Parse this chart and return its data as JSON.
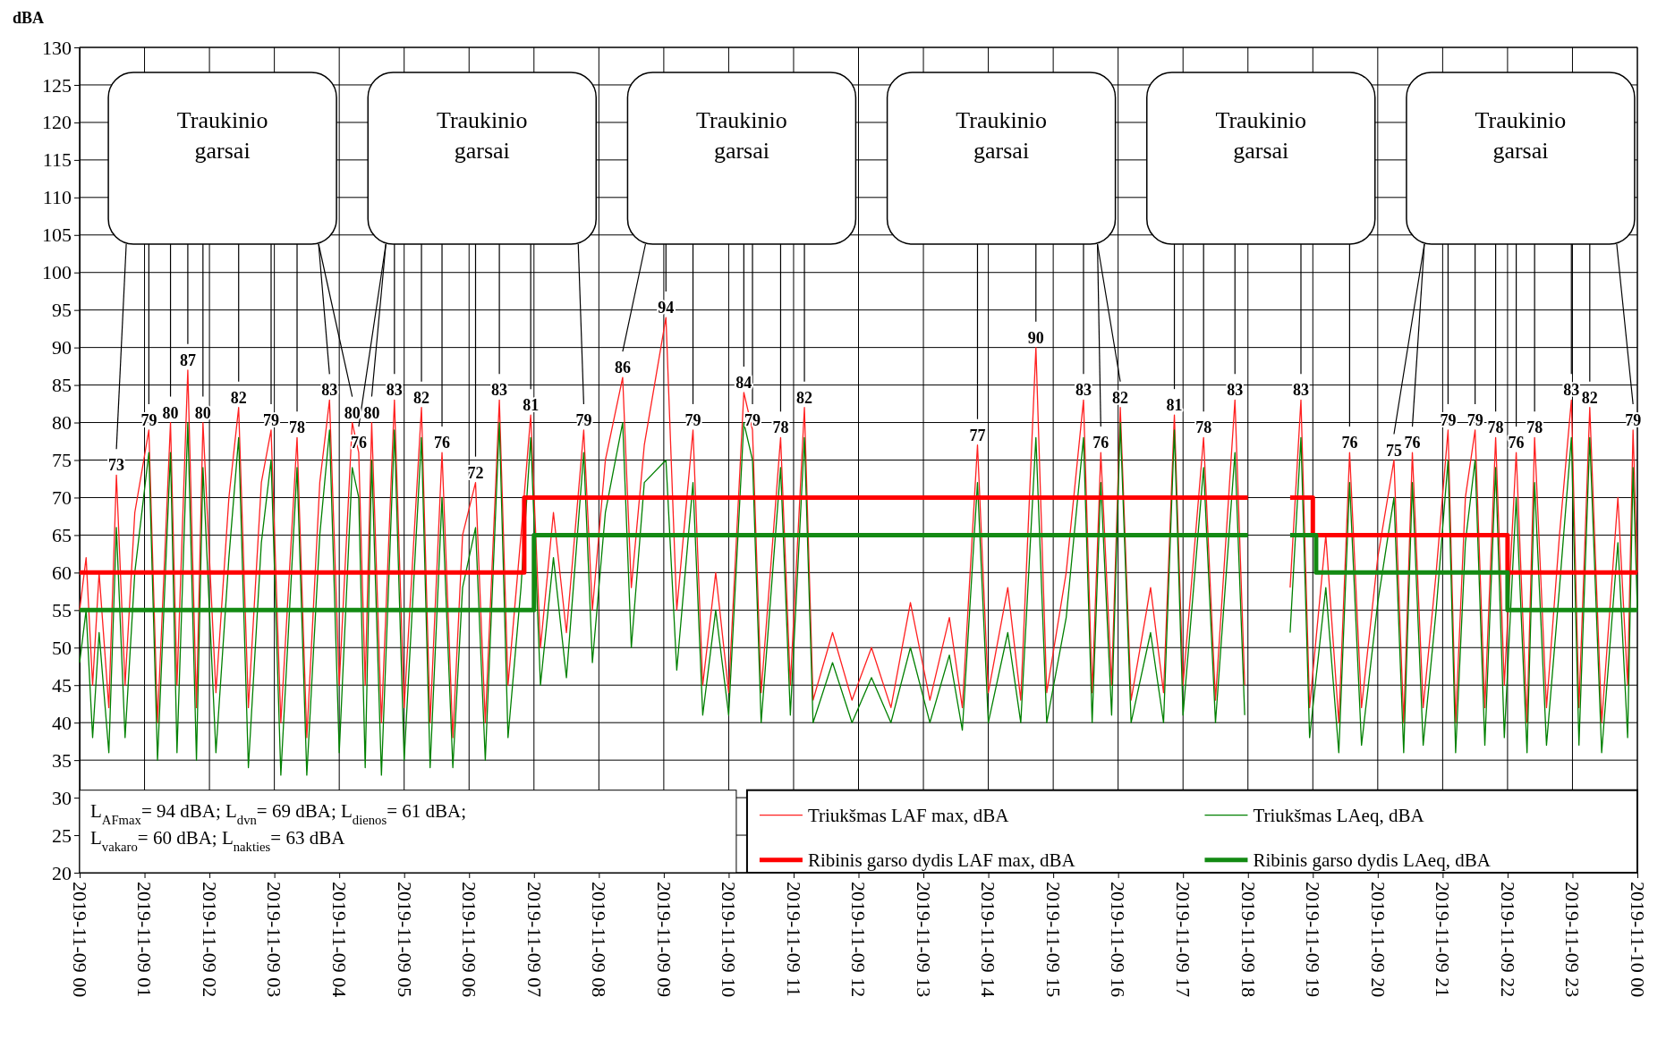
{
  "chart_data": {
    "type": "line",
    "ylabel": "dBA",
    "xlim": [
      "2019-11-09T00:00",
      "2019-11-10T00:00"
    ],
    "xticks": [
      {
        "value": "2019-11-09T00:00",
        "label": "2019-11-09 00"
      },
      {
        "value": "2019-11-09T01:00",
        "label": "2019-11-09 01"
      },
      {
        "value": "2019-11-09T02:00",
        "label": "2019-11-09 02"
      },
      {
        "value": "2019-11-09T03:00",
        "label": "2019-11-09 03"
      },
      {
        "value": "2019-11-09T04:00",
        "label": "2019-11-09 04"
      },
      {
        "value": "2019-11-09T05:00",
        "label": "2019-11-09 05"
      },
      {
        "value": "2019-11-09T06:00",
        "label": "2019-11-09 06"
      },
      {
        "value": "2019-11-09T07:00",
        "label": "2019-11-09 07"
      },
      {
        "value": "2019-11-09T08:00",
        "label": "2019-11-09 08"
      },
      {
        "value": "2019-11-09T09:00",
        "label": "2019-11-09 09"
      },
      {
        "value": "2019-11-09T10:00",
        "label": "2019-11-09 10"
      },
      {
        "value": "2019-11-09T11:00",
        "label": "2019-11-09 11"
      },
      {
        "value": "2019-11-09T12:00",
        "label": "2019-11-09 12"
      },
      {
        "value": "2019-11-09T13:00",
        "label": "2019-11-09 13"
      },
      {
        "value": "2019-11-09T14:00",
        "label": "2019-11-09 14"
      },
      {
        "value": "2019-11-09T15:00",
        "label": "2019-11-09 15"
      },
      {
        "value": "2019-11-09T16:00",
        "label": "2019-11-09 16"
      },
      {
        "value": "2019-11-09T17:00",
        "label": "2019-11-09 17"
      },
      {
        "value": "2019-11-09T18:00",
        "label": "2019-11-09 18"
      },
      {
        "value": "2019-11-09T19:00",
        "label": "2019-11-09 19"
      },
      {
        "value": "2019-11-09T20:00",
        "label": "2019-11-09 20"
      },
      {
        "value": "2019-11-09T21:00",
        "label": "2019-11-09 21"
      },
      {
        "value": "2019-11-09T22:00",
        "label": "2019-11-09 22"
      },
      {
        "value": "2019-11-09T23:00",
        "label": "2019-11-09 23"
      },
      {
        "value": "2019-11-10T00:00",
        "label": "2019-11-10 00"
      }
    ],
    "ylim": [
      20,
      130
    ],
    "yticks": [
      20,
      25,
      30,
      35,
      40,
      45,
      50,
      55,
      60,
      65,
      70,
      75,
      80,
      85,
      90,
      95,
      100,
      105,
      110,
      115,
      120,
      125,
      130
    ],
    "grid": true,
    "legend": "bottom right",
    "x": [
      "2019-11-09T00:00",
      "2019-11-09T00:06",
      "2019-11-09T00:12",
      "2019-11-09T00:18",
      "2019-11-09T00:27",
      "2019-11-09T00:34",
      "2019-11-09T00:42",
      "2019-11-09T00:51",
      "2019-11-09T01:04",
      "2019-11-09T01:12",
      "2019-11-09T01:24",
      "2019-11-09T01:30",
      "2019-11-09T01:40",
      "2019-11-09T01:48",
      "2019-11-09T01:54",
      "2019-11-09T02:06",
      "2019-11-09T02:18",
      "2019-11-09T02:27",
      "2019-11-09T02:36",
      "2019-11-09T02:48",
      "2019-11-09T02:57",
      "2019-11-09T03:06",
      "2019-11-09T03:21",
      "2019-11-09T03:30",
      "2019-11-09T03:42",
      "2019-11-09T03:51",
      "2019-11-09T04:00",
      "2019-11-09T04:12",
      "2019-11-09T04:18",
      "2019-11-09T04:24",
      "2019-11-09T04:30",
      "2019-11-09T04:39",
      "2019-11-09T04:51",
      "2019-11-09T05:00",
      "2019-11-09T05:16",
      "2019-11-09T05:24",
      "2019-11-09T05:35",
      "2019-11-09T05:45",
      "2019-11-09T05:54",
      "2019-11-09T06:06",
      "2019-11-09T06:15",
      "2019-11-09T06:28",
      "2019-11-09T06:36",
      "2019-11-09T06:48",
      "2019-11-09T06:57",
      "2019-11-09T07:06",
      "2019-11-09T07:18",
      "2019-11-09T07:30",
      "2019-11-09T07:46",
      "2019-11-09T07:54",
      "2019-11-09T08:06",
      "2019-11-09T08:22",
      "2019-11-09T08:30",
      "2019-11-09T08:42",
      "2019-11-09T09:02",
      "2019-11-09T09:12",
      "2019-11-09T09:27",
      "2019-11-09T09:36",
      "2019-11-09T09:48",
      "2019-11-09T10:00",
      "2019-11-09T10:14",
      "2019-11-09T10:22",
      "2019-11-09T10:30",
      "2019-11-09T10:48",
      "2019-11-09T10:57",
      "2019-11-09T11:10",
      "2019-11-09T11:18",
      "2019-11-09T11:36",
      "2019-11-09T11:54",
      "2019-11-09T12:12",
      "2019-11-09T12:30",
      "2019-11-09T12:48",
      "2019-11-09T13:06",
      "2019-11-09T13:24",
      "2019-11-09T13:36",
      "2019-11-09T13:50",
      "2019-11-09T14:00",
      "2019-11-09T14:18",
      "2019-11-09T14:30",
      "2019-11-09T14:44",
      "2019-11-09T14:54",
      "2019-11-09T15:12",
      "2019-11-09T15:28",
      "2019-11-09T15:36",
      "2019-11-09T15:44",
      "2019-11-09T15:54",
      "2019-11-09T16:02",
      "2019-11-09T16:12",
      "2019-11-09T16:30",
      "2019-11-09T16:42",
      "2019-11-09T16:52",
      "2019-11-09T17:00",
      "2019-11-09T17:19",
      "2019-11-09T17:30",
      "2019-11-09T17:48",
      "2019-11-09T17:57",
      "2019-11-09T18:18",
      "2019-11-09T18:39",
      "2019-11-09T18:49",
      "2019-11-09T18:57",
      "2019-11-09T19:12",
      "2019-11-09T19:24",
      "2019-11-09T19:34",
      "2019-11-09T19:45",
      "2019-11-09T20:00",
      "2019-11-09T20:15",
      "2019-11-09T20:24",
      "2019-11-09T20:32",
      "2019-11-09T20:42",
      "2019-11-09T20:54",
      "2019-11-09T21:05",
      "2019-11-09T21:12",
      "2019-11-09T21:21",
      "2019-11-09T21:30",
      "2019-11-09T21:39",
      "2019-11-09T21:49",
      "2019-11-09T21:57",
      "2019-11-09T22:08",
      "2019-11-09T22:18",
      "2019-11-09T22:25",
      "2019-11-09T22:36",
      "2019-11-09T22:48",
      "2019-11-09T22:59",
      "2019-11-09T23:06",
      "2019-11-09T23:16",
      "2019-11-09T23:27",
      "2019-11-09T23:42",
      "2019-11-09T23:51",
      "2019-11-09T23:56",
      "2019-11-10T00:00"
    ],
    "series": [
      {
        "name": "Triukšmas LAF max, dBA",
        "color": "#ff2020",
        "values": [
          55,
          62,
          45,
          60,
          42,
          73,
          45,
          68,
          79,
          40,
          80,
          45,
          87,
          42,
          80,
          44,
          70,
          82,
          42,
          72,
          79,
          40,
          78,
          38,
          72,
          83,
          45,
          80,
          76,
          45,
          80,
          40,
          83,
          42,
          82,
          40,
          76,
          38,
          65,
          72,
          40,
          83,
          45,
          65,
          81,
          50,
          68,
          52,
          79,
          55,
          75,
          86,
          58,
          77,
          94,
          55,
          79,
          45,
          60,
          44,
          84,
          79,
          44,
          78,
          45,
          82,
          43,
          52,
          43,
          50,
          42,
          56,
          43,
          54,
          42,
          77,
          44,
          58,
          43,
          90,
          44,
          60,
          83,
          44,
          76,
          45,
          82,
          43,
          58,
          44,
          81,
          45,
          78,
          43,
          83,
          45,
          null,
          58,
          83,
          42,
          65,
          40,
          76,
          42,
          62,
          75,
          40,
          76,
          42,
          60,
          79,
          40,
          70,
          79,
          42,
          78,
          45,
          76,
          40,
          78,
          42,
          65,
          83,
          42,
          82,
          40,
          70,
          45,
          79,
          60
        ]
      },
      {
        "name": "Triukšmas LAeq, dBA",
        "color": "#008000",
        "values": [
          48,
          55,
          38,
          52,
          36,
          66,
          38,
          60,
          76,
          35,
          76,
          36,
          80,
          35,
          74,
          36,
          62,
          78,
          34,
          64,
          75,
          33,
          74,
          33,
          65,
          79,
          36,
          74,
          70,
          34,
          75,
          33,
          79,
          35,
          78,
          34,
          70,
          34,
          58,
          66,
          35,
          80,
          38,
          58,
          78,
          45,
          62,
          46,
          76,
          48,
          68,
          80,
          50,
          72,
          75,
          47,
          72,
          41,
          55,
          41,
          80,
          75,
          40,
          74,
          41,
          78,
          40,
          48,
          40,
          46,
          40,
          50,
          40,
          49,
          39,
          72,
          40,
          52,
          40,
          78,
          40,
          54,
          78,
          40,
          72,
          41,
          80,
          40,
          52,
          40,
          79,
          41,
          74,
          40,
          76,
          41,
          null,
          52,
          78,
          38,
          58,
          36,
          72,
          37,
          56,
          70,
          36,
          72,
          37,
          55,
          75,
          36,
          64,
          75,
          37,
          74,
          38,
          70,
          36,
          72,
          37,
          58,
          78,
          37,
          78,
          36,
          64,
          38,
          74,
          55
        ]
      },
      {
        "name": "Ribinis garso dydis LAF max, dBA",
        "type": "step",
        "color": "#ff0000",
        "x": [
          "2019-11-09T00:00",
          "2019-11-09T06:51",
          "2019-11-09T18:00",
          "2019-11-09T18:18",
          "2019-11-09T18:39",
          "2019-11-09T19:00",
          "2019-11-09T22:00",
          "2019-11-10T00:00"
        ],
        "values": [
          60,
          70,
          70,
          null,
          70,
          65,
          60,
          60
        ]
      },
      {
        "name": "Ribinis garso dydis LAeq, dBA",
        "type": "step",
        "color": "#138a13",
        "x": [
          "2019-11-09T00:00",
          "2019-11-09T07:00",
          "2019-11-09T18:00",
          "2019-11-09T18:18",
          "2019-11-09T18:39",
          "2019-11-09T19:03",
          "2019-11-09T22:00",
          "2019-11-10T00:00"
        ],
        "values": [
          55,
          65,
          65,
          null,
          65,
          60,
          55,
          55
        ]
      }
    ],
    "annotations": [
      "L$_{AFmax}$= 94 dBA; L$_{dvn}$= 69 dBA; L$_{dienos}$= 61 dBA;",
      "L$_{vakaro}$= 60 dBA; L$_{nakties}$= 63 dBA",
      "Traukinio garsai",
      "Traukinio garsai",
      "Traukinio garsai",
      "Traukinio garsai",
      "Traukinio garsai",
      "Traukinio garsai",
      {
        "text": "73",
        "x": "2019-11-09T00:34",
        "y": 73
      },
      {
        "text": "79",
        "x": "2019-11-09T01:04",
        "y": 79
      },
      {
        "text": "80",
        "x": "2019-11-09T01:24",
        "y": 80
      },
      {
        "text": "87",
        "x": "2019-11-09T01:40",
        "y": 87
      },
      {
        "text": "80",
        "x": "2019-11-09T01:54",
        "y": 80
      },
      {
        "text": "82",
        "x": "2019-11-09T02:27",
        "y": 82
      },
      {
        "text": "79",
        "x": "2019-11-09T02:57",
        "y": 79
      },
      {
        "text": "78",
        "x": "2019-11-09T03:21",
        "y": 78
      },
      {
        "text": "83",
        "x": "2019-11-09T03:51",
        "y": 83
      },
      {
        "text": "80",
        "x": "2019-11-09T04:12",
        "y": 80
      },
      {
        "text": "76",
        "x": "2019-11-09T04:18",
        "y": 76
      },
      {
        "text": "80",
        "x": "2019-11-09T04:30",
        "y": 80
      },
      {
        "text": "83",
        "x": "2019-11-09T04:51",
        "y": 83
      },
      {
        "text": "82",
        "x": "2019-11-09T05:16",
        "y": 82
      },
      {
        "text": "76",
        "x": "2019-11-09T05:35",
        "y": 76
      },
      {
        "text": "72",
        "x": "2019-11-09T06:06",
        "y": 72
      },
      {
        "text": "83",
        "x": "2019-11-09T06:28",
        "y": 83
      },
      {
        "text": "81",
        "x": "2019-11-09T06:57",
        "y": 81
      },
      {
        "text": "79",
        "x": "2019-11-09T07:46",
        "y": 79
      },
      {
        "text": "86",
        "x": "2019-11-09T08:22",
        "y": 86
      },
      {
        "text": "94",
        "x": "2019-11-09T09:02",
        "y": 94
      },
      {
        "text": "79",
        "x": "2019-11-09T09:27",
        "y": 79
      },
      {
        "text": "84",
        "x": "2019-11-09T10:14",
        "y": 84
      },
      {
        "text": "79",
        "x": "2019-11-09T10:22",
        "y": 79
      },
      {
        "text": "78",
        "x": "2019-11-09T10:48",
        "y": 78
      },
      {
        "text": "82",
        "x": "2019-11-09T11:10",
        "y": 82
      },
      {
        "text": "77",
        "x": "2019-11-09T13:50",
        "y": 77
      },
      {
        "text": "90",
        "x": "2019-11-09T14:44",
        "y": 90
      },
      {
        "text": "83",
        "x": "2019-11-09T15:28",
        "y": 83
      },
      {
        "text": "76",
        "x": "2019-11-09T15:44",
        "y": 76
      },
      {
        "text": "82",
        "x": "2019-11-09T16:02",
        "y": 82
      },
      {
        "text": "81",
        "x": "2019-11-09T16:52",
        "y": 81
      },
      {
        "text": "78",
        "x": "2019-11-09T17:19",
        "y": 78
      },
      {
        "text": "83",
        "x": "2019-11-09T17:48",
        "y": 83
      },
      {
        "text": "83",
        "x": "2019-11-09T18:49",
        "y": 83
      },
      {
        "text": "76",
        "x": "2019-11-09T19:34",
        "y": 76
      },
      {
        "text": "75",
        "x": "2019-11-09T20:15",
        "y": 75
      },
      {
        "text": "76",
        "x": "2019-11-09T20:32",
        "y": 76
      },
      {
        "text": "79",
        "x": "2019-11-09T21:05",
        "y": 79
      },
      {
        "text": "79",
        "x": "2019-11-09T21:30",
        "y": 79
      },
      {
        "text": "78",
        "x": "2019-11-09T21:49",
        "y": 78
      },
      {
        "text": "76",
        "x": "2019-11-09T22:08",
        "y": 76
      },
      {
        "text": "78",
        "x": "2019-11-09T22:25",
        "y": 78
      },
      {
        "text": "83",
        "x": "2019-11-09T22:59",
        "y": 83
      },
      {
        "text": "82",
        "x": "2019-11-09T23:16",
        "y": 82
      },
      {
        "text": "79",
        "x": "2019-11-09T23:56",
        "y": 79
      }
    ]
  }
}
